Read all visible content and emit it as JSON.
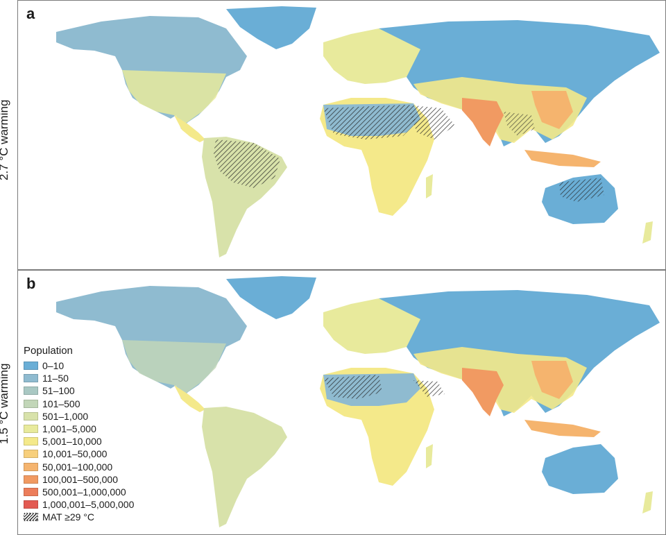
{
  "panels": [
    {
      "letter": "a",
      "side_label": "2.7 °C warming",
      "hatch_regions": "high"
    },
    {
      "letter": "b",
      "side_label": "1.5 °C warming",
      "hatch_regions": "low"
    }
  ],
  "legend": {
    "title": "Population",
    "items": [
      {
        "label": "0–10",
        "color": "#6aaed6"
      },
      {
        "label": "11–50",
        "color": "#8fbbd0"
      },
      {
        "label": "51–100",
        "color": "#a9c8c3"
      },
      {
        "label": "101–500",
        "color": "#c2d6b8"
      },
      {
        "label": "501–1,000",
        "color": "#d8e2aa"
      },
      {
        "label": "1,001–5,000",
        "color": "#e8ea9c"
      },
      {
        "label": "5,001–10,000",
        "color": "#f4e98a"
      },
      {
        "label": "10,001–50,000",
        "color": "#f7cf7c"
      },
      {
        "label": "50,001–100,000",
        "color": "#f5b46e"
      },
      {
        "label": "100,001–500,000",
        "color": "#f19a62"
      },
      {
        "label": "500,001–1,000,000",
        "color": "#ec7d5a"
      },
      {
        "label": "1,000,001–5,000,000",
        "color": "#e35a52"
      }
    ],
    "hatch_label": "MAT ≥29 °C"
  }
}
